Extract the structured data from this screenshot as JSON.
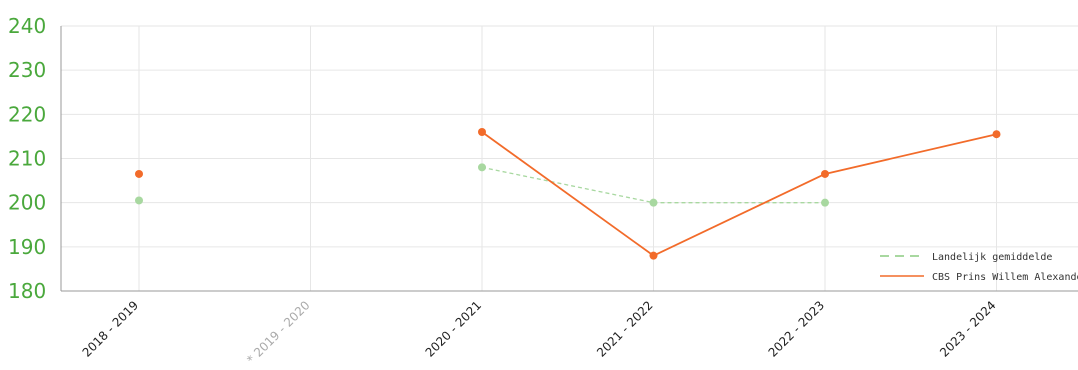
{
  "chart_data": {
    "type": "line",
    "categories": [
      "2018 - 2019",
      "* 2019 - 2020",
      "2020 - 2021",
      "2021 - 2022",
      "2022 - 2023",
      "2023 - 2024"
    ],
    "category_disabled": [
      false,
      true,
      false,
      false,
      false,
      false
    ],
    "series": [
      {
        "name": "Landelijk gemiddelde",
        "values": [
          200.5,
          null,
          208,
          200,
          200,
          null
        ],
        "color": "#a8d8a0",
        "style": "dashed"
      },
      {
        "name": "CBS Prins Willem Alexander",
        "values": [
          206.5,
          null,
          216,
          188,
          206.5,
          215.5
        ],
        "color": "#f26b2a",
        "style": "solid"
      }
    ],
    "ylim": [
      180,
      240
    ],
    "yticks": [
      180,
      190,
      200,
      210,
      220,
      230,
      240
    ],
    "grid": true,
    "legend_position": "bottom-right",
    "colors": {
      "ytick": "#4aa83c",
      "xtick": "#222222",
      "xtick_disabled": "#aaaaaa",
      "grid": "#e6e6e6",
      "axis": "#999999"
    }
  }
}
